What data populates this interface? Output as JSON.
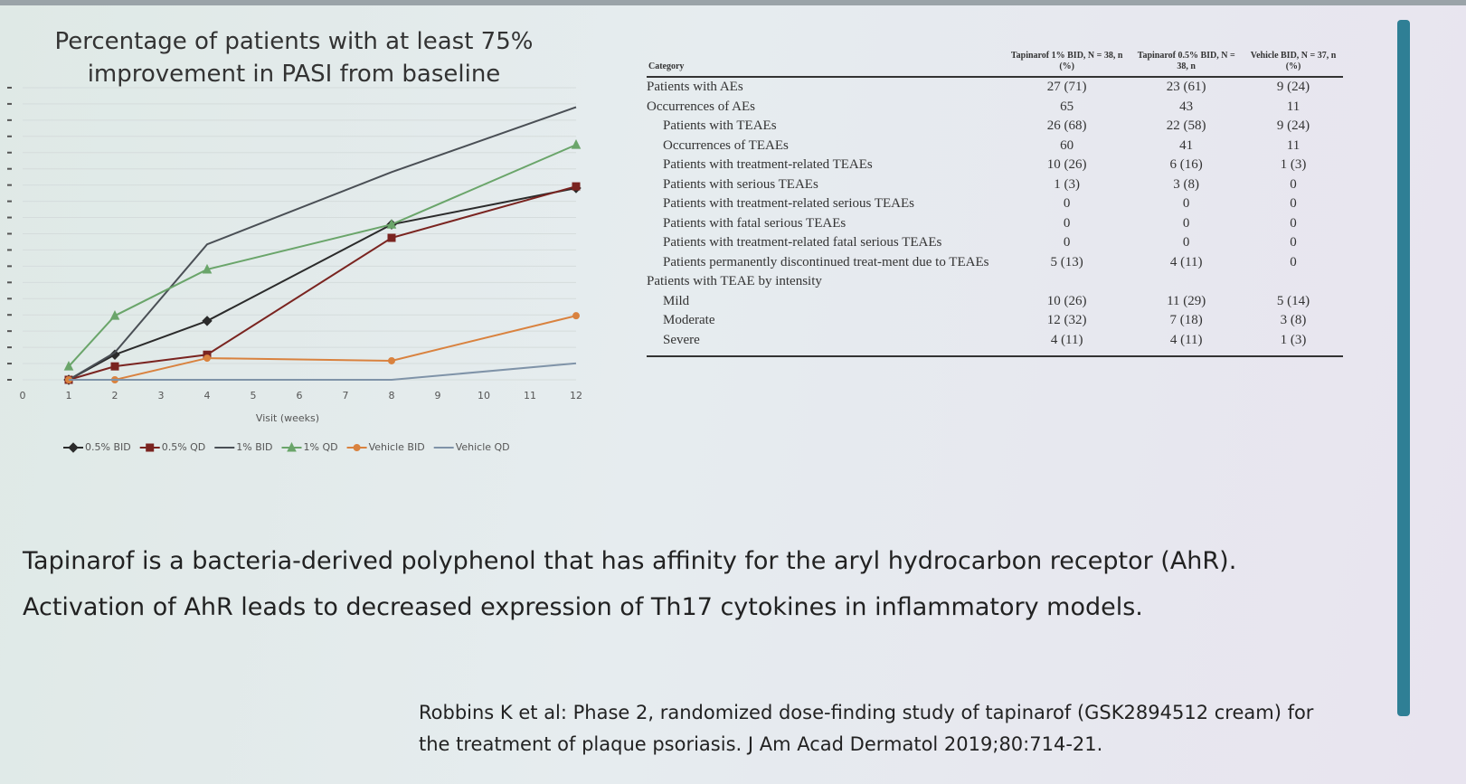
{
  "chart_data": {
    "type": "line",
    "title": "Percentage of patients with at least 75% improvement in PASI from baseline",
    "x_label": "Visit (weeks)",
    "x": [
      1,
      2,
      4,
      8,
      12
    ],
    "xlim": [
      0,
      12
    ],
    "xticks": [
      0,
      1,
      2,
      3,
      4,
      5,
      6,
      7,
      8,
      9,
      10,
      11,
      12
    ],
    "ylim": [
      0,
      70
    ],
    "yticks": [
      0,
      3.75,
      7.5,
      11.25,
      15,
      18.75,
      22.5,
      26.25,
      30,
      33.75,
      37.5,
      41.25,
      45,
      48.75,
      52.5,
      56.25,
      60,
      63.75,
      67.5
    ],
    "grid": true,
    "series": [
      {
        "name": "0.5% BID",
        "color": "#2b2b2b",
        "marker": "diamond",
        "values": [
          0,
          5.8,
          13.6,
          35.9,
          44.3
        ]
      },
      {
        "name": "0.5% QD",
        "color": "#7a2420",
        "marker": "square",
        "values": [
          0,
          3.1,
          5.8,
          32.8,
          44.7
        ]
      },
      {
        "name": "1% BID",
        "color": "#4a4f55",
        "marker": "none",
        "values": [
          0,
          6.3,
          31.3,
          48,
          63
        ]
      },
      {
        "name": "1% QD",
        "color": "#6aa56a",
        "marker": "triangle",
        "values": [
          3.1,
          14.8,
          25.5,
          35.9,
          54.3
        ]
      },
      {
        "name": "Vehicle BID",
        "color": "#d9823f",
        "marker": "circle",
        "values": [
          0,
          0,
          5,
          4.4,
          14.8
        ]
      },
      {
        "name": "Vehicle QD",
        "color": "#7f93a8",
        "marker": "none",
        "values": [
          0,
          0,
          0,
          0,
          3.8
        ]
      }
    ]
  },
  "table": {
    "header": [
      "Category",
      "Tapinarof 1% BID, N = 38, n (%)",
      "Tapinarof 0.5% BID, N = 38, n",
      "Vehicle BID, N = 37, n (%)"
    ],
    "rows": [
      [
        "Patients with AEs",
        "27 (71)",
        "23 (61)",
        "9 (24)"
      ],
      [
        "Occurrences of AEs",
        "65",
        "43",
        "11"
      ],
      [
        "Patients with TEAEs",
        "26 (68)",
        "22 (58)",
        "9 (24)"
      ],
      [
        "Occurrences of TEAEs",
        "60",
        "41",
        "11"
      ],
      [
        "Patients with treatment-related TEAEs",
        "10 (26)",
        "6 (16)",
        "1 (3)"
      ],
      [
        "Patients with serious TEAEs",
        "1 (3)",
        "3 (8)",
        "0"
      ],
      [
        "Patients with treatment-related serious TEAEs",
        "0",
        "0",
        "0"
      ],
      [
        "Patients with fatal serious TEAEs",
        "0",
        "0",
        "0"
      ],
      [
        "Patients with treatment-related fatal serious TEAEs",
        "0",
        "0",
        "0"
      ],
      [
        "Patients permanently discontinued treat-ment due to TEAEs",
        "5 (13)",
        "4 (11)",
        "0"
      ],
      [
        "Patients with TEAE by intensity"
      ],
      [
        "Mild",
        "10 (26)",
        "11 (29)",
        "5 (14)"
      ],
      [
        "Moderate",
        "12 (32)",
        "7 (18)",
        "3 (8)"
      ],
      [
        "Severe",
        "4 (11)",
        "4 (11)",
        "1 (3)"
      ]
    ]
  },
  "bullets": [
    "Tapinarof is a bacteria-derived polyphenol that has affinity for the aryl hydrocarbon receptor (AhR).",
    "Activation of AhR leads to decreased expression of Th17 cytokines in inflammatory models."
  ],
  "citation": [
    "Robbins K et al: Phase 2, randomized dose-finding study of tapinarof (GSK2894512 cream) for",
    "the treatment of plaque psoriasis. J Am Acad Dermatol 2019;80:714-21."
  ]
}
